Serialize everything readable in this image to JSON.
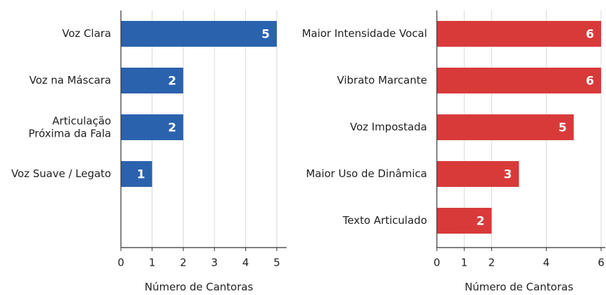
{
  "chart_data": [
    {
      "type": "bar",
      "orientation": "horizontal",
      "categories": [
        "Voz Clara",
        "Voz na Máscara",
        "Articulação\nPróxima da Fala",
        "Voz Suave / Legato"
      ],
      "values": [
        5,
        2,
        2,
        1
      ],
      "color": "#2b62ad",
      "xlim": [
        0,
        5
      ],
      "xticks": [
        0,
        1,
        2,
        3,
        4,
        5
      ],
      "xlabel": "Número de Cantoras",
      "grid": true
    },
    {
      "type": "bar",
      "orientation": "horizontal",
      "categories": [
        "Maior Intensidade Vocal",
        "Vibrato Marcante",
        "Voz Impostada",
        "Maior Uso de Dinâmica",
        "Texto Articulado"
      ],
      "values": [
        6,
        6,
        5,
        3,
        2
      ],
      "color": "#d83a3a",
      "xlim": [
        0,
        6
      ],
      "xticks": [
        0,
        1,
        2,
        4,
        6
      ],
      "xlabel": "Número de Cantoras",
      "grid": true
    }
  ]
}
